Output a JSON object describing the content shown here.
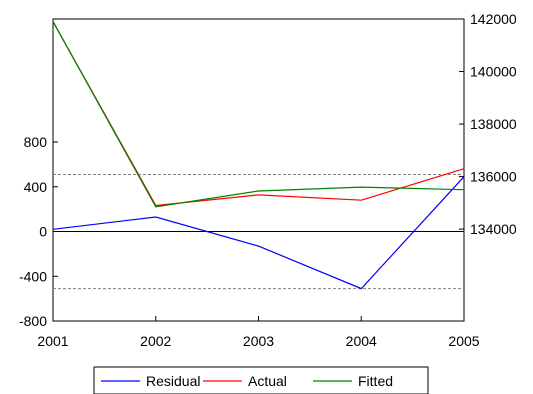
{
  "chart_data": {
    "type": "line",
    "x": [
      "2001",
      "2002",
      "2003",
      "2004",
      "2005"
    ],
    "series": [
      {
        "name": "Residual",
        "axis": "left",
        "color": "#0000ff",
        "values": [
          20,
          130,
          -130,
          -510,
          490
        ]
      },
      {
        "name": "Actual",
        "axis": "right",
        "color": "#ff0000",
        "values": [
          141900,
          134900,
          135300,
          135100,
          136300
        ]
      },
      {
        "name": "Fitted",
        "axis": "right",
        "color": "#008000",
        "values": [
          141900,
          134850,
          135450,
          135600,
          135500
        ]
      }
    ],
    "left_axis": {
      "ticks": [
        800,
        400,
        0,
        -400,
        -800
      ],
      "labels": [
        "800",
        "400",
        "0",
        "-400",
        "-800"
      ],
      "range": [
        -800,
        1900
      ]
    },
    "right_axis": {
      "ticks": [
        142000,
        140000,
        138000,
        136000,
        134000
      ],
      "labels": [
        "142000",
        "140000",
        "138000",
        "136000",
        "134000"
      ],
      "range": [
        130500,
        142000
      ]
    },
    "x_tick_labels": [
      "2001",
      "2002",
      "2003",
      "2004",
      "2005"
    ],
    "reference_lines": [
      {
        "axis": "left",
        "value": 0,
        "style": "solid",
        "color": "#000000"
      },
      {
        "axis": "left",
        "value": 510,
        "style": "dashed",
        "color": "#808080"
      },
      {
        "axis": "left",
        "value": -510,
        "style": "dashed",
        "color": "#808080"
      }
    ],
    "legend": {
      "placement": "bottom",
      "entries": [
        "Residual",
        "Actual",
        "Fitted"
      ]
    },
    "grid": false
  }
}
